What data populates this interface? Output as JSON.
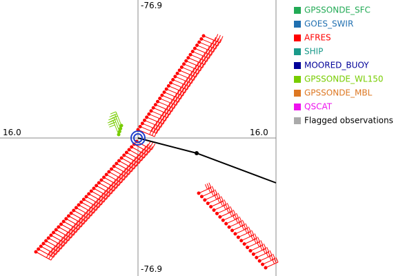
{
  "axis_labels": {
    "top": "-76.9",
    "bottom": "-76.9",
    "left": "16.0",
    "right": "16.0"
  },
  "legend": [
    {
      "name": "GPSSONDE_SFC",
      "color": "#22aa55"
    },
    {
      "name": "GOES_SWIR",
      "color": "#1f6fb0"
    },
    {
      "name": "AFRES",
      "color": "#ff0000"
    },
    {
      "name": "SHIP",
      "color": "#1a9a8a"
    },
    {
      "name": "MOORED_BUOY",
      "color": "#000099"
    },
    {
      "name": "GPSSONDE_WL150",
      "color": "#77cc00"
    },
    {
      "name": "GPSSONDE_MBL",
      "color": "#dd7722"
    },
    {
      "name": "QSCAT",
      "color": "#ee11ee"
    },
    {
      "name": "Flagged observations",
      "color": "#aaaaaa"
    }
  ]
}
